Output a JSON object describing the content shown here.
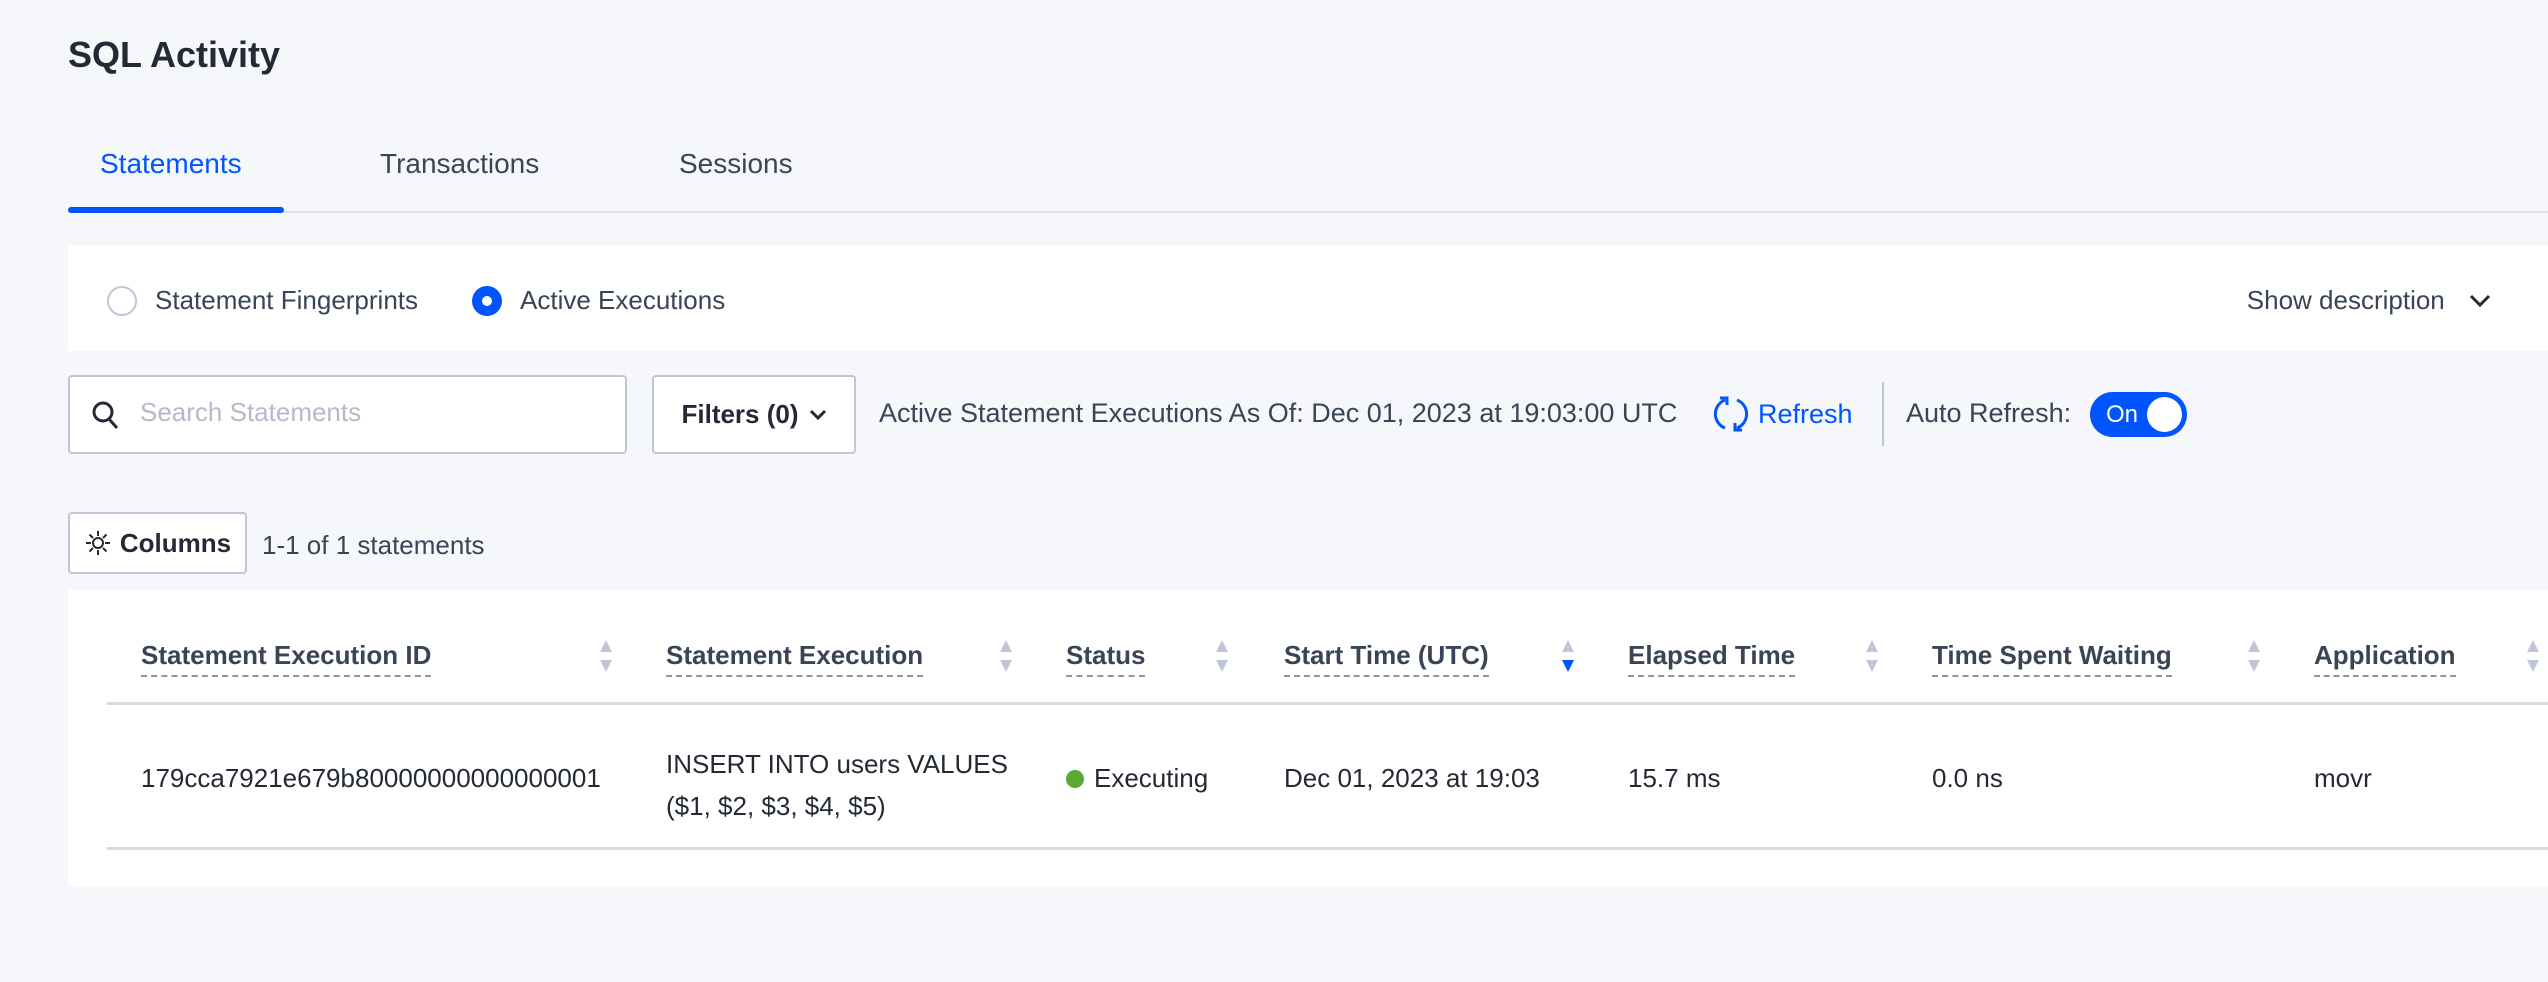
{
  "page": {
    "title": "SQL Activity"
  },
  "tabs": [
    {
      "label": "Statements",
      "active": true
    },
    {
      "label": "Transactions"
    },
    {
      "label": "Sessions"
    }
  ],
  "view": {
    "options": [
      {
        "label": "Statement Fingerprints",
        "selected": false
      },
      {
        "label": "Active Executions",
        "selected": true
      }
    ],
    "show_description": "Show description"
  },
  "toolbar": {
    "search_placeholder": "Search Statements",
    "search_value": "",
    "filters_label": "Filters (0)",
    "as_of_text": "Active Statement Executions As Of: Dec 01, 2023 at 19:03:00 UTC",
    "refresh_label": "Refresh",
    "auto_refresh_label": "Auto Refresh:",
    "auto_refresh_state": "On",
    "columns_label": "Columns",
    "count_text": "1-1 of 1 statements"
  },
  "colors": {
    "accent": "#0055ff",
    "executing": "#5aaa33"
  },
  "table": {
    "columns": [
      "Statement Execution ID",
      "Statement Execution",
      "Status",
      "Start Time (UTC)",
      "Elapsed Time",
      "Time Spent Waiting",
      "Application"
    ],
    "sorted_column": "Start Time (UTC)",
    "sort_direction": "descending",
    "rows": [
      {
        "id": "179cca7921e679b80000000000000001",
        "statement_line1": "INSERT INTO users VALUES",
        "statement_line2": "($1, $2, $3, $4, $5)",
        "status": "Executing",
        "start_time": "Dec 01, 2023 at 19:03",
        "elapsed": "15.7 ms",
        "waiting": "0.0 ns",
        "application": "movr"
      }
    ]
  }
}
